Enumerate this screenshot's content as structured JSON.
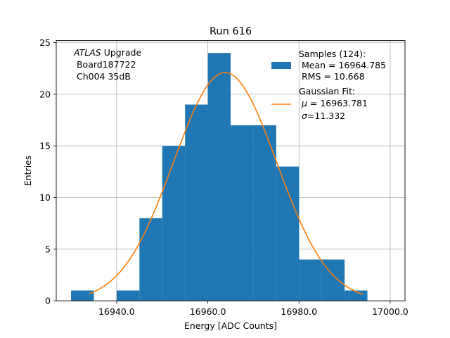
{
  "chart_data": {
    "type": "bar",
    "title": "Run 616",
    "xlabel": "Energy [ADC Counts]",
    "ylabel": "Entries",
    "xlim": [
      16926.75,
      17003.25
    ],
    "ylim": [
      0,
      25.2
    ],
    "grid": true,
    "xticks": [
      16940,
      16960,
      16980,
      17000
    ],
    "xtick_labels": [
      "16940.0",
      "16960.0",
      "16980.0",
      "17000.0"
    ],
    "yticks": [
      0,
      5,
      10,
      15,
      20,
      25
    ],
    "ytick_labels": [
      "0",
      "5",
      "10",
      "15",
      "20",
      "25"
    ],
    "bins": [
      {
        "x0": 16930,
        "x1": 16935,
        "count": 1
      },
      {
        "x0": 16935,
        "x1": 16940,
        "count": 0
      },
      {
        "x0": 16940,
        "x1": 16945,
        "count": 1
      },
      {
        "x0": 16945,
        "x1": 16950,
        "count": 8
      },
      {
        "x0": 16950,
        "x1": 16955,
        "count": 15
      },
      {
        "x0": 16955,
        "x1": 16960,
        "count": 19
      },
      {
        "x0": 16960,
        "x1": 16965,
        "count": 24
      },
      {
        "x0": 16965,
        "x1": 16970,
        "count": 17
      },
      {
        "x0": 16970,
        "x1": 16975,
        "count": 17
      },
      {
        "x0": 16975,
        "x1": 16980,
        "count": 13
      },
      {
        "x0": 16980,
        "x1": 16985,
        "count": 4
      },
      {
        "x0": 16985,
        "x1": 16990,
        "count": 4
      },
      {
        "x0": 16990,
        "x1": 16995,
        "count": 1
      }
    ],
    "fit": {
      "type": "gaussian",
      "mu": 16963.781,
      "sigma": 11.332,
      "amplitude": 22.1,
      "x_range": [
        16934,
        16994
      ]
    },
    "annotation": {
      "line1_italic": "ATLAS",
      "line1_rest": " Upgrade",
      "line2": " Board187722",
      "line3": " Ch004 35dB"
    },
    "legend": {
      "location": "top-right",
      "samples_line1": "Samples (124):",
      "samples_line2": " Mean = 16964.785",
      "samples_line3": " RMS = 10.668",
      "fit_line1": "Gaussian Fit:",
      "fit_line2_symbol": "μ",
      "fit_line2_rest": " = 16963.781",
      "fit_line3_symbol": "σ",
      "fit_line3_rest": "=11.332"
    },
    "colors": {
      "bars": "#1f77b4",
      "fit": "#ff7f0e",
      "grid": "#b0b0b0"
    }
  }
}
